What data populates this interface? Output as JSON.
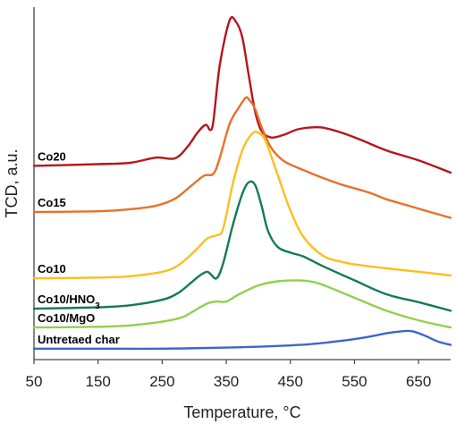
{
  "chart_data": {
    "type": "line",
    "title": "",
    "xlabel": "Temperature, °C",
    "ylabel": "TCD, a.u.",
    "xlim": [
      50,
      700
    ],
    "x_ticks": [
      "50",
      "150",
      "250",
      "350",
      "450",
      "550",
      "650"
    ],
    "y_ticks_shown": false,
    "grid": false,
    "legend": "none (curve labels at left)",
    "y_unit_note": "relative intensity, arbitrary units (0-100)",
    "ylim": [
      0,
      100
    ],
    "series": [
      {
        "name": "Co20",
        "color": "#b5161b",
        "x": [
          50,
          150,
          200,
          240,
          270,
          290,
          305,
          318,
          325,
          330,
          340,
          355,
          365,
          375,
          385,
          395,
          405,
          420,
          440,
          460,
          480,
          500,
          530,
          560,
          600,
          650,
          700
        ],
        "y": [
          56.7,
          57.2,
          57.6,
          59.1,
          58.9,
          62.4,
          66.4,
          68.7,
          67.2,
          69.9,
          86.4,
          99.2,
          98.9,
          94.3,
          83.2,
          72.6,
          66.9,
          65.0,
          65.8,
          67.3,
          67.9,
          67.9,
          66.4,
          64.3,
          61.2,
          58.3,
          54.7
        ]
      },
      {
        "name": "Co15",
        "color": "#e8702a",
        "x": [
          50,
          150,
          200,
          240,
          270,
          295,
          315,
          330,
          340,
          355,
          370,
          380,
          385,
          395,
          405,
          420,
          440,
          470,
          500,
          530,
          560,
          580,
          600,
          630,
          660,
          700
        ],
        "y": [
          43.2,
          43.4,
          44.0,
          45.0,
          47.1,
          50.8,
          53.8,
          54.4,
          59.1,
          68.9,
          73.9,
          76.6,
          76.2,
          73.4,
          68.1,
          62.0,
          58.1,
          55.5,
          53.2,
          51.2,
          49.6,
          48.4,
          46.9,
          45.3,
          43.6,
          41.5
        ]
      },
      {
        "name": "Co10",
        "color": "#fbbf1e",
        "x": [
          50,
          150,
          200,
          250,
          275,
          300,
          320,
          335,
          345,
          360,
          375,
          390,
          400,
          410,
          420,
          435,
          450,
          470,
          500,
          530,
          560,
          600,
          650,
          700
        ],
        "y": [
          23.8,
          24.0,
          24.4,
          25.7,
          27.6,
          31.6,
          35.4,
          36.4,
          38.3,
          51.3,
          61.2,
          66.1,
          66.4,
          64.5,
          59.6,
          51.5,
          43.6,
          36.0,
          30.5,
          28.6,
          27.6,
          26.7,
          25.7,
          24.6
        ]
      },
      {
        "name": "Co10/HNO3",
        "color": "#137a57",
        "x": [
          50,
          150,
          200,
          250,
          275,
          295,
          310,
          320,
          325,
          335,
          345,
          360,
          375,
          385,
          395,
          405,
          415,
          430,
          450,
          470,
          500,
          550,
          600,
          650,
          700
        ],
        "y": [
          14.9,
          15.3,
          15.9,
          17.5,
          19.5,
          22.5,
          24.8,
          25.7,
          25.1,
          23.8,
          28.1,
          39.2,
          48.5,
          51.9,
          51.1,
          45.1,
          37.7,
          33.0,
          31.3,
          30.2,
          27.4,
          23.2,
          19.1,
          16.8,
          14.3
        ]
      },
      {
        "name": "Co10/MgO",
        "color": "#8fd14f",
        "x": [
          50,
          150,
          200,
          250,
          280,
          300,
          320,
          335,
          350,
          370,
          400,
          430,
          460,
          480,
          500,
          550,
          600,
          650,
          700
        ],
        "y": [
          9.4,
          9.6,
          10.0,
          11.1,
          12.3,
          14.3,
          16.4,
          17.0,
          17.0,
          19.1,
          21.7,
          22.9,
          23.2,
          22.9,
          21.9,
          18.1,
          14.3,
          11.5,
          9.4
        ]
      },
      {
        "name": "Untretaed char",
        "color": "#3d66c9",
        "x": [
          50,
          150,
          250,
          350,
          420,
          480,
          530,
          570,
          600,
          625,
          640,
          660,
          680,
          700
        ],
        "y": [
          3.2,
          3.2,
          3.2,
          3.5,
          3.9,
          4.5,
          5.5,
          6.6,
          7.7,
          8.3,
          8.3,
          7.0,
          5.3,
          4.3
        ]
      }
    ]
  }
}
